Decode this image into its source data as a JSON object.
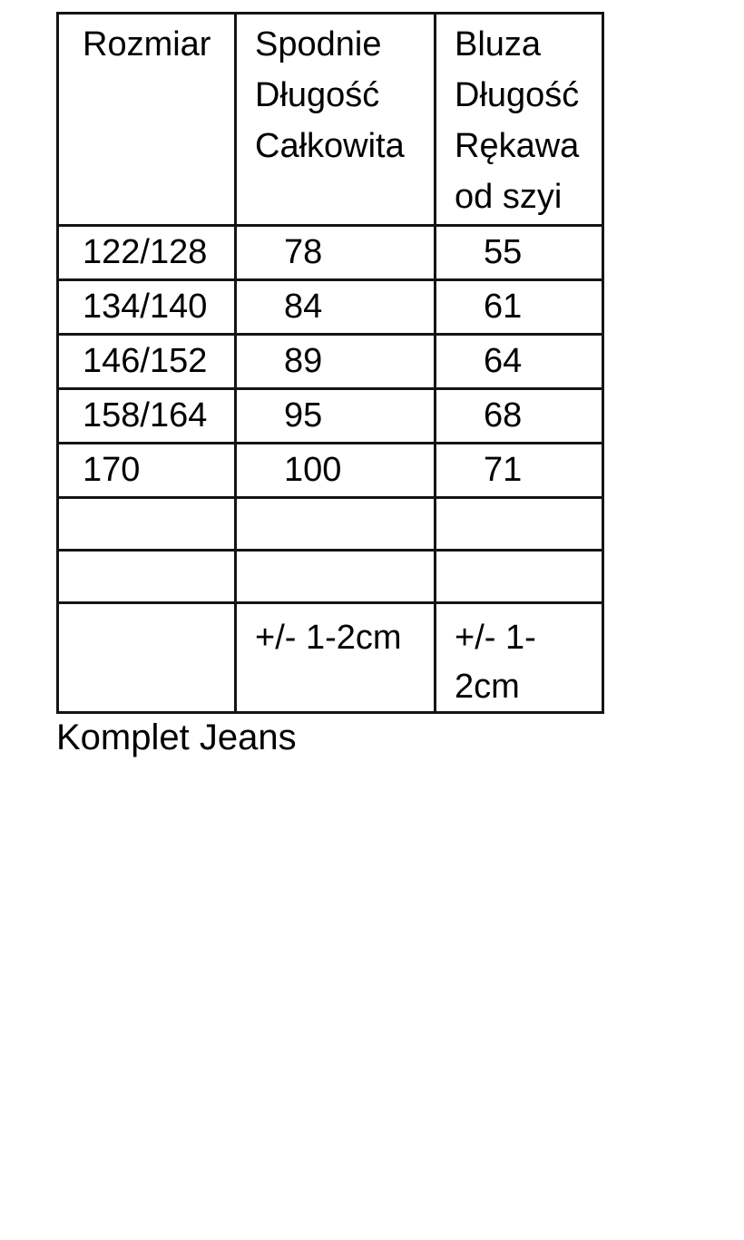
{
  "colors": {
    "background": "#ffffff",
    "border": "#141414",
    "text": "#000000"
  },
  "size_table": {
    "columns": [
      "Rozmiar",
      "Spodnie\nDługość\nCałkowita",
      "Bluza\nDługość\nRękawa\nod szyi"
    ],
    "rows": [
      [
        "122/128",
        "78",
        "55"
      ],
      [
        "134/140",
        "84",
        "61"
      ],
      [
        "146/152",
        "89",
        "64"
      ],
      [
        "158/164",
        "95",
        "68"
      ],
      [
        "170",
        "100",
        "71"
      ],
      [
        "",
        "",
        ""
      ],
      [
        "",
        "",
        ""
      ],
      [
        "",
        "+/- 1-2cm",
        "+/- 1-\n2cm"
      ]
    ]
  },
  "caption": "Komplet Jeans"
}
